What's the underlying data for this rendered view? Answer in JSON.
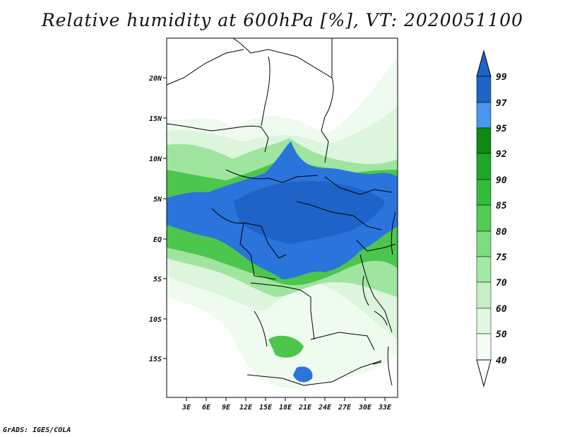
{
  "title": "Relative humidity at 600hPa [%], VT: 2020051100",
  "credit": "GrADS: IGES/COLA",
  "map": {
    "variable": "Relative humidity",
    "level": "600hPa",
    "units": "%",
    "valid_time": "2020051100",
    "lat_labels": [
      "20N",
      "15N",
      "10N",
      "5N",
      "EQ",
      "5S",
      "10S",
      "15S"
    ],
    "lon_labels": [
      "3E",
      "6E",
      "9E",
      "12E",
      "15E",
      "18E",
      "21E",
      "24E",
      "27E",
      "30E",
      "33E"
    ]
  },
  "colorbar": {
    "labels": [
      "99",
      "97",
      "95",
      "92",
      "90",
      "85",
      "80",
      "75",
      "70",
      "60",
      "50",
      "40"
    ],
    "colors": [
      "#1e64c8",
      "#2a74dc",
      "#4a96ee",
      "#0e8a14",
      "#1ea628",
      "#33bb3a",
      "#52cc52",
      "#7ddc7d",
      "#a3e8a3",
      "#c4f0c4",
      "#e0f8e0",
      "#f4fdf4"
    ]
  },
  "colors": {
    "wet": "#2a74dc",
    "wetter": "#1e64c8",
    "green": "#52cc52",
    "pale": "#e0f8e0"
  }
}
